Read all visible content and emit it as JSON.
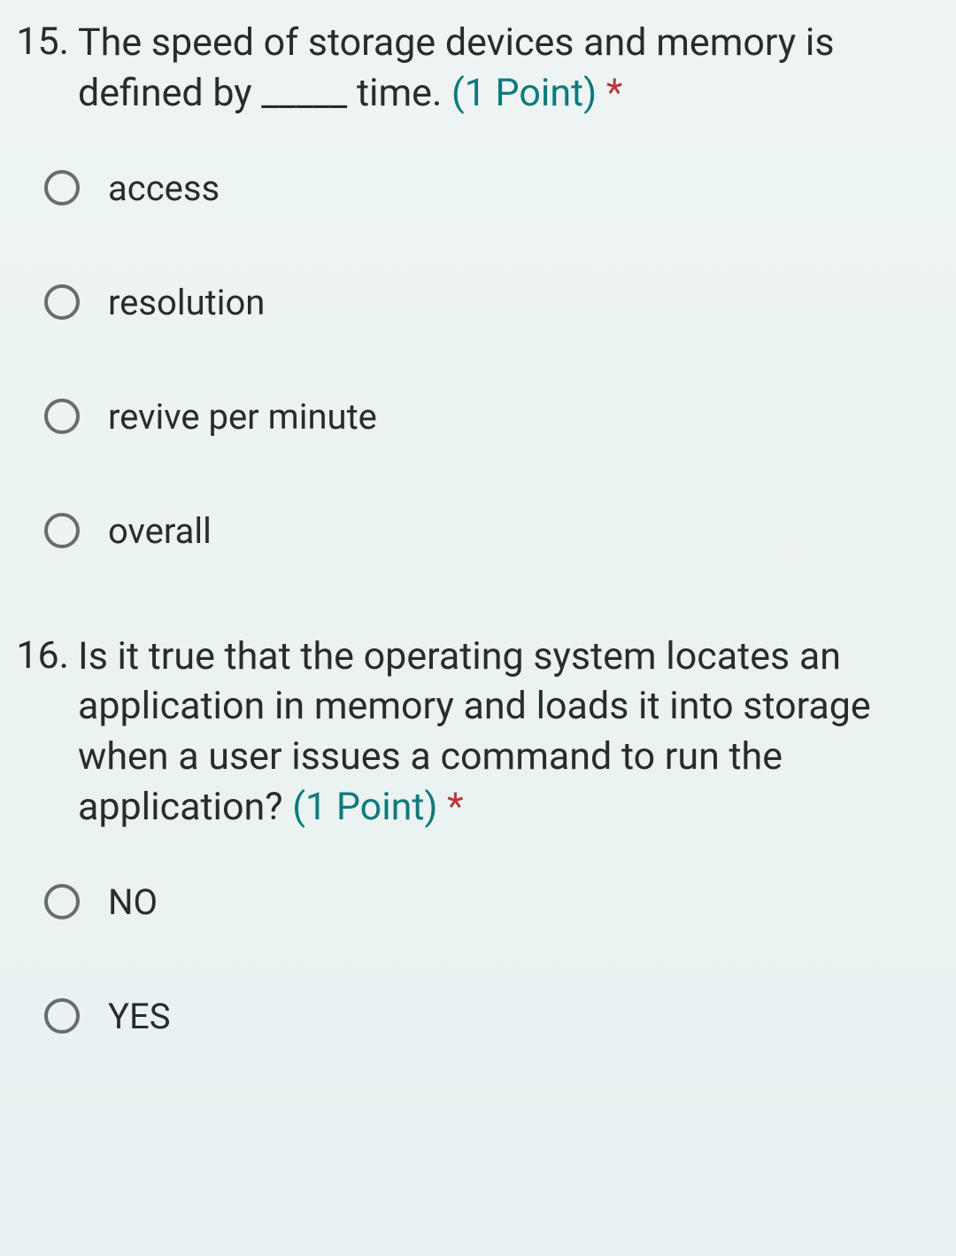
{
  "questions": [
    {
      "number": "15.",
      "text": "The speed of storage devices and memory is defined by _____ time.",
      "points": "(1 Point)",
      "required": "*",
      "options": [
        "access",
        "resolution",
        "revive per minute",
        "overall"
      ]
    },
    {
      "number": "16.",
      "text": "Is it true that the operating system locates an application in memory and loads it into storage when a user issues a command to run the application?",
      "points": "(1 Point)",
      "required": "*",
      "options": [
        "NO",
        "YES"
      ]
    }
  ],
  "colors": {
    "text": "#2b2b2b",
    "points": "#0d7a7a",
    "required": "#b73838",
    "radio_border": "#6b6b6b",
    "background_top": "#eef4f4",
    "background_bottom": "#e8f1f1"
  }
}
